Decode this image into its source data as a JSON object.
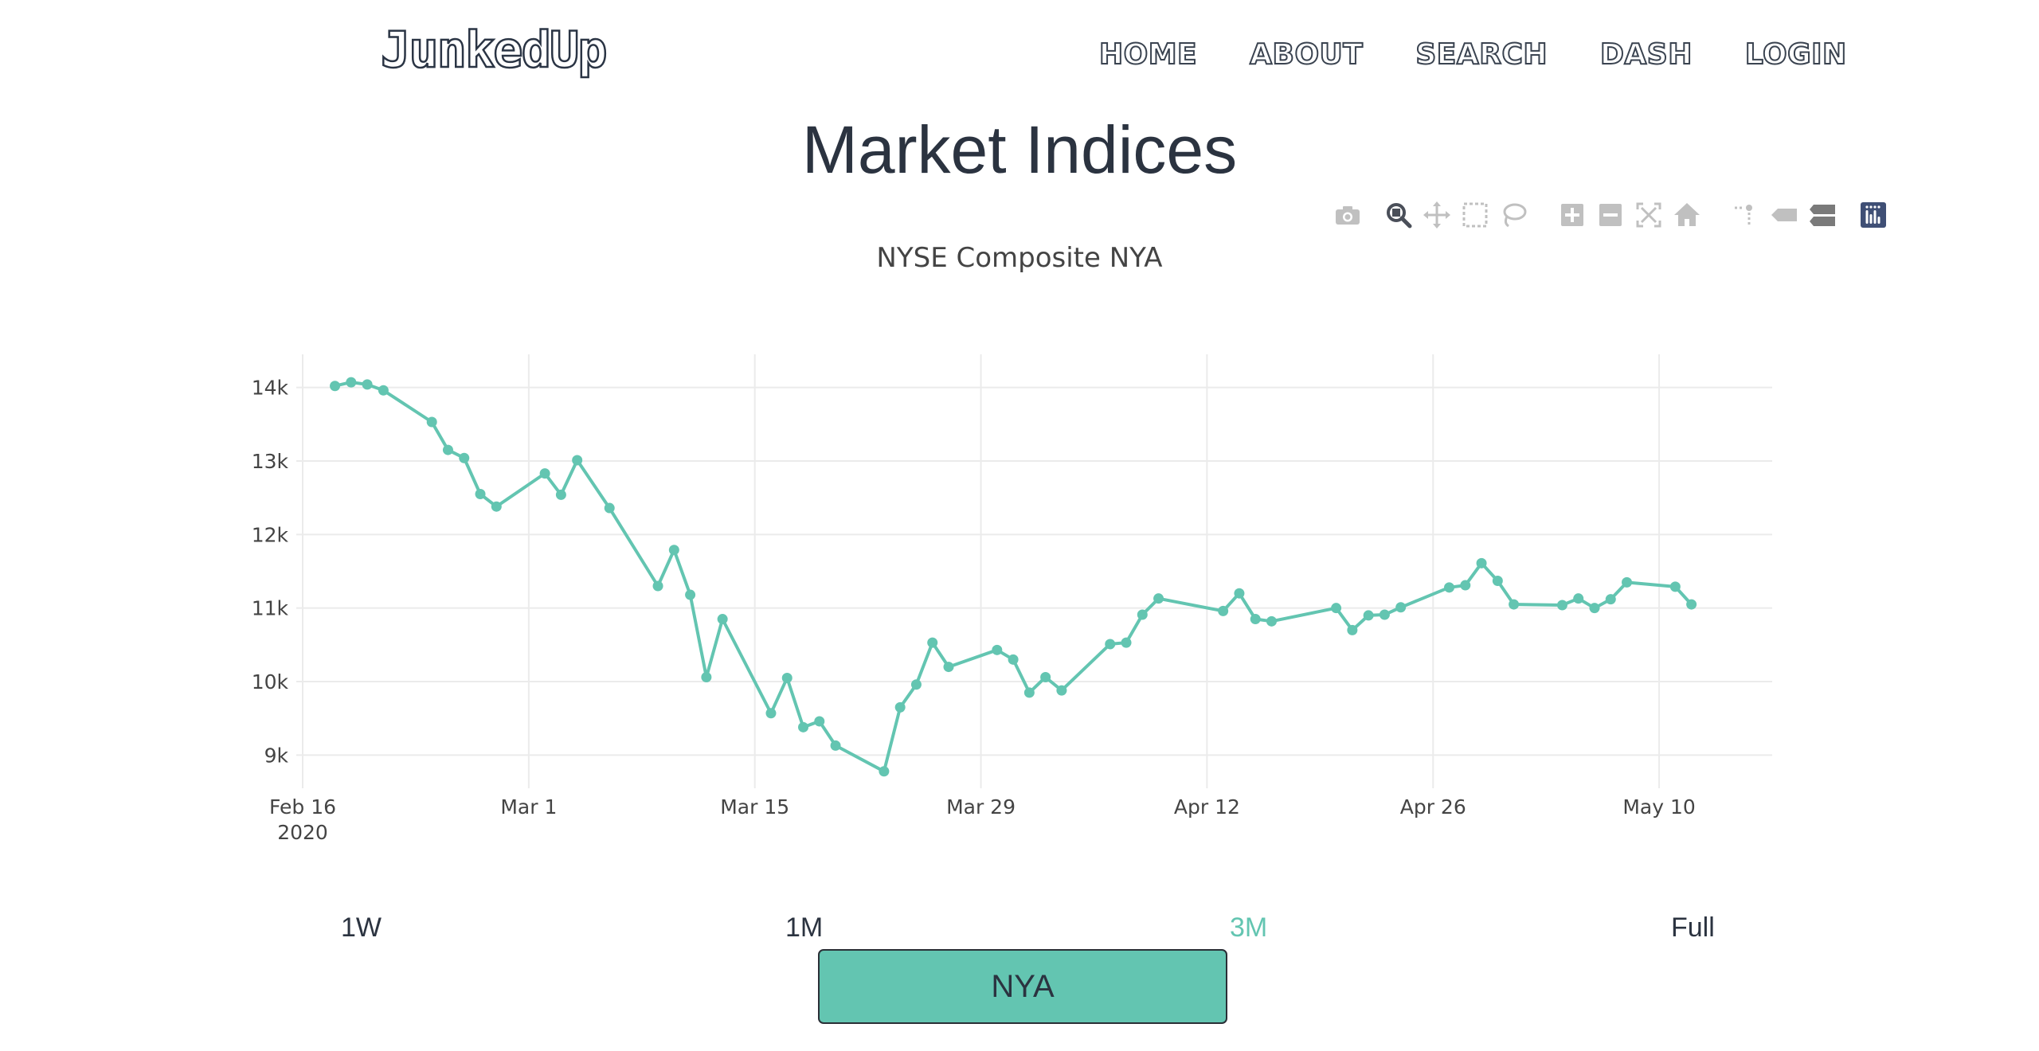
{
  "brand": "JunkedUp",
  "nav": [
    "HOME",
    "ABOUT",
    "SEARCH",
    "DASH",
    "LOGIN"
  ],
  "page_title": "Market Indices",
  "modebar": [
    {
      "name": "camera-icon",
      "active": false
    },
    {
      "name": "zoom-icon",
      "active": true
    },
    {
      "name": "pan-icon",
      "active": false
    },
    {
      "name": "box-select-icon",
      "active": false
    },
    {
      "name": "lasso-select-icon",
      "active": false
    },
    {
      "name": "zoom-in-icon",
      "active": false
    },
    {
      "name": "zoom-out-icon",
      "active": false
    },
    {
      "name": "autoscale-icon",
      "active": false
    },
    {
      "name": "reset-axes-icon",
      "active": false
    },
    {
      "name": "spike-lines-icon",
      "active": false
    },
    {
      "name": "hover-closest-icon",
      "active": false
    },
    {
      "name": "hover-compare-icon",
      "active": false
    },
    {
      "name": "plotly-logo-icon",
      "active": false
    }
  ],
  "range_buttons": [
    {
      "label": "1W",
      "active": false
    },
    {
      "label": "1M",
      "active": false
    },
    {
      "label": "3M",
      "active": true
    },
    {
      "label": "Full",
      "active": false
    }
  ],
  "symbol_button": "NYA",
  "chart_data": {
    "type": "line",
    "title": "NYSE Composite NYA",
    "xlabel": "",
    "ylabel": "",
    "mode": "lines+markers",
    "color": "#63c5b1",
    "grid": true,
    "legend": "none",
    "xlim": [
      "2020-02-16",
      "2020-05-17"
    ],
    "ylim": [
      8550,
      14450
    ],
    "x_ticks": [
      {
        "date": "2020-02-16",
        "label": "Feb 16",
        "sub": "2020"
      },
      {
        "date": "2020-03-01",
        "label": "Mar 1",
        "sub": ""
      },
      {
        "date": "2020-03-15",
        "label": "Mar 15",
        "sub": ""
      },
      {
        "date": "2020-03-29",
        "label": "Mar 29",
        "sub": ""
      },
      {
        "date": "2020-04-12",
        "label": "Apr 12",
        "sub": ""
      },
      {
        "date": "2020-04-26",
        "label": "Apr 26",
        "sub": ""
      },
      {
        "date": "2020-05-10",
        "label": "May 10",
        "sub": ""
      }
    ],
    "y_ticks": [
      {
        "value": 9000,
        "label": "9k"
      },
      {
        "value": 10000,
        "label": "10k"
      },
      {
        "value": 11000,
        "label": "11k"
      },
      {
        "value": 12000,
        "label": "12k"
      },
      {
        "value": 13000,
        "label": "13k"
      },
      {
        "value": 14000,
        "label": "14k"
      }
    ],
    "series": [
      {
        "x": [
          "2020-02-18",
          "2020-02-19",
          "2020-02-20",
          "2020-02-21",
          "2020-02-24",
          "2020-02-25",
          "2020-02-26",
          "2020-02-27",
          "2020-02-28",
          "2020-03-02",
          "2020-03-03",
          "2020-03-04",
          "2020-03-06",
          "2020-03-09",
          "2020-03-10",
          "2020-03-11",
          "2020-03-12",
          "2020-03-13",
          "2020-03-16",
          "2020-03-17",
          "2020-03-18",
          "2020-03-19",
          "2020-03-20",
          "2020-03-23",
          "2020-03-24",
          "2020-03-25",
          "2020-03-26",
          "2020-03-27",
          "2020-03-30",
          "2020-03-31",
          "2020-04-01",
          "2020-04-02",
          "2020-04-03",
          "2020-04-06",
          "2020-04-07",
          "2020-04-08",
          "2020-04-09",
          "2020-04-13",
          "2020-04-14",
          "2020-04-15",
          "2020-04-16",
          "2020-04-20",
          "2020-04-21",
          "2020-04-22",
          "2020-04-23",
          "2020-04-24",
          "2020-04-27",
          "2020-04-28",
          "2020-04-29",
          "2020-04-30",
          "2020-05-01",
          "2020-05-04",
          "2020-05-05",
          "2020-05-06",
          "2020-05-07",
          "2020-05-08",
          "2020-05-11",
          "2020-05-12"
        ],
        "y": [
          14020,
          14070,
          14040,
          13960,
          13530,
          13150,
          13040,
          12550,
          12380,
          12830,
          12540,
          13010,
          12360,
          11300,
          11790,
          11180,
          10060,
          10850,
          9570,
          10050,
          9380,
          9460,
          9130,
          8780,
          9650,
          9960,
          10530,
          10200,
          10430,
          10300,
          9850,
          10060,
          9880,
          10510,
          10530,
          10910,
          11130,
          10960,
          11200,
          10850,
          10820,
          11000,
          10700,
          10900,
          10910,
          11010,
          11280,
          11310,
          11610,
          11370,
          11050,
          11040,
          11130,
          11000,
          11120,
          11350,
          11290,
          11050
        ]
      }
    ]
  }
}
